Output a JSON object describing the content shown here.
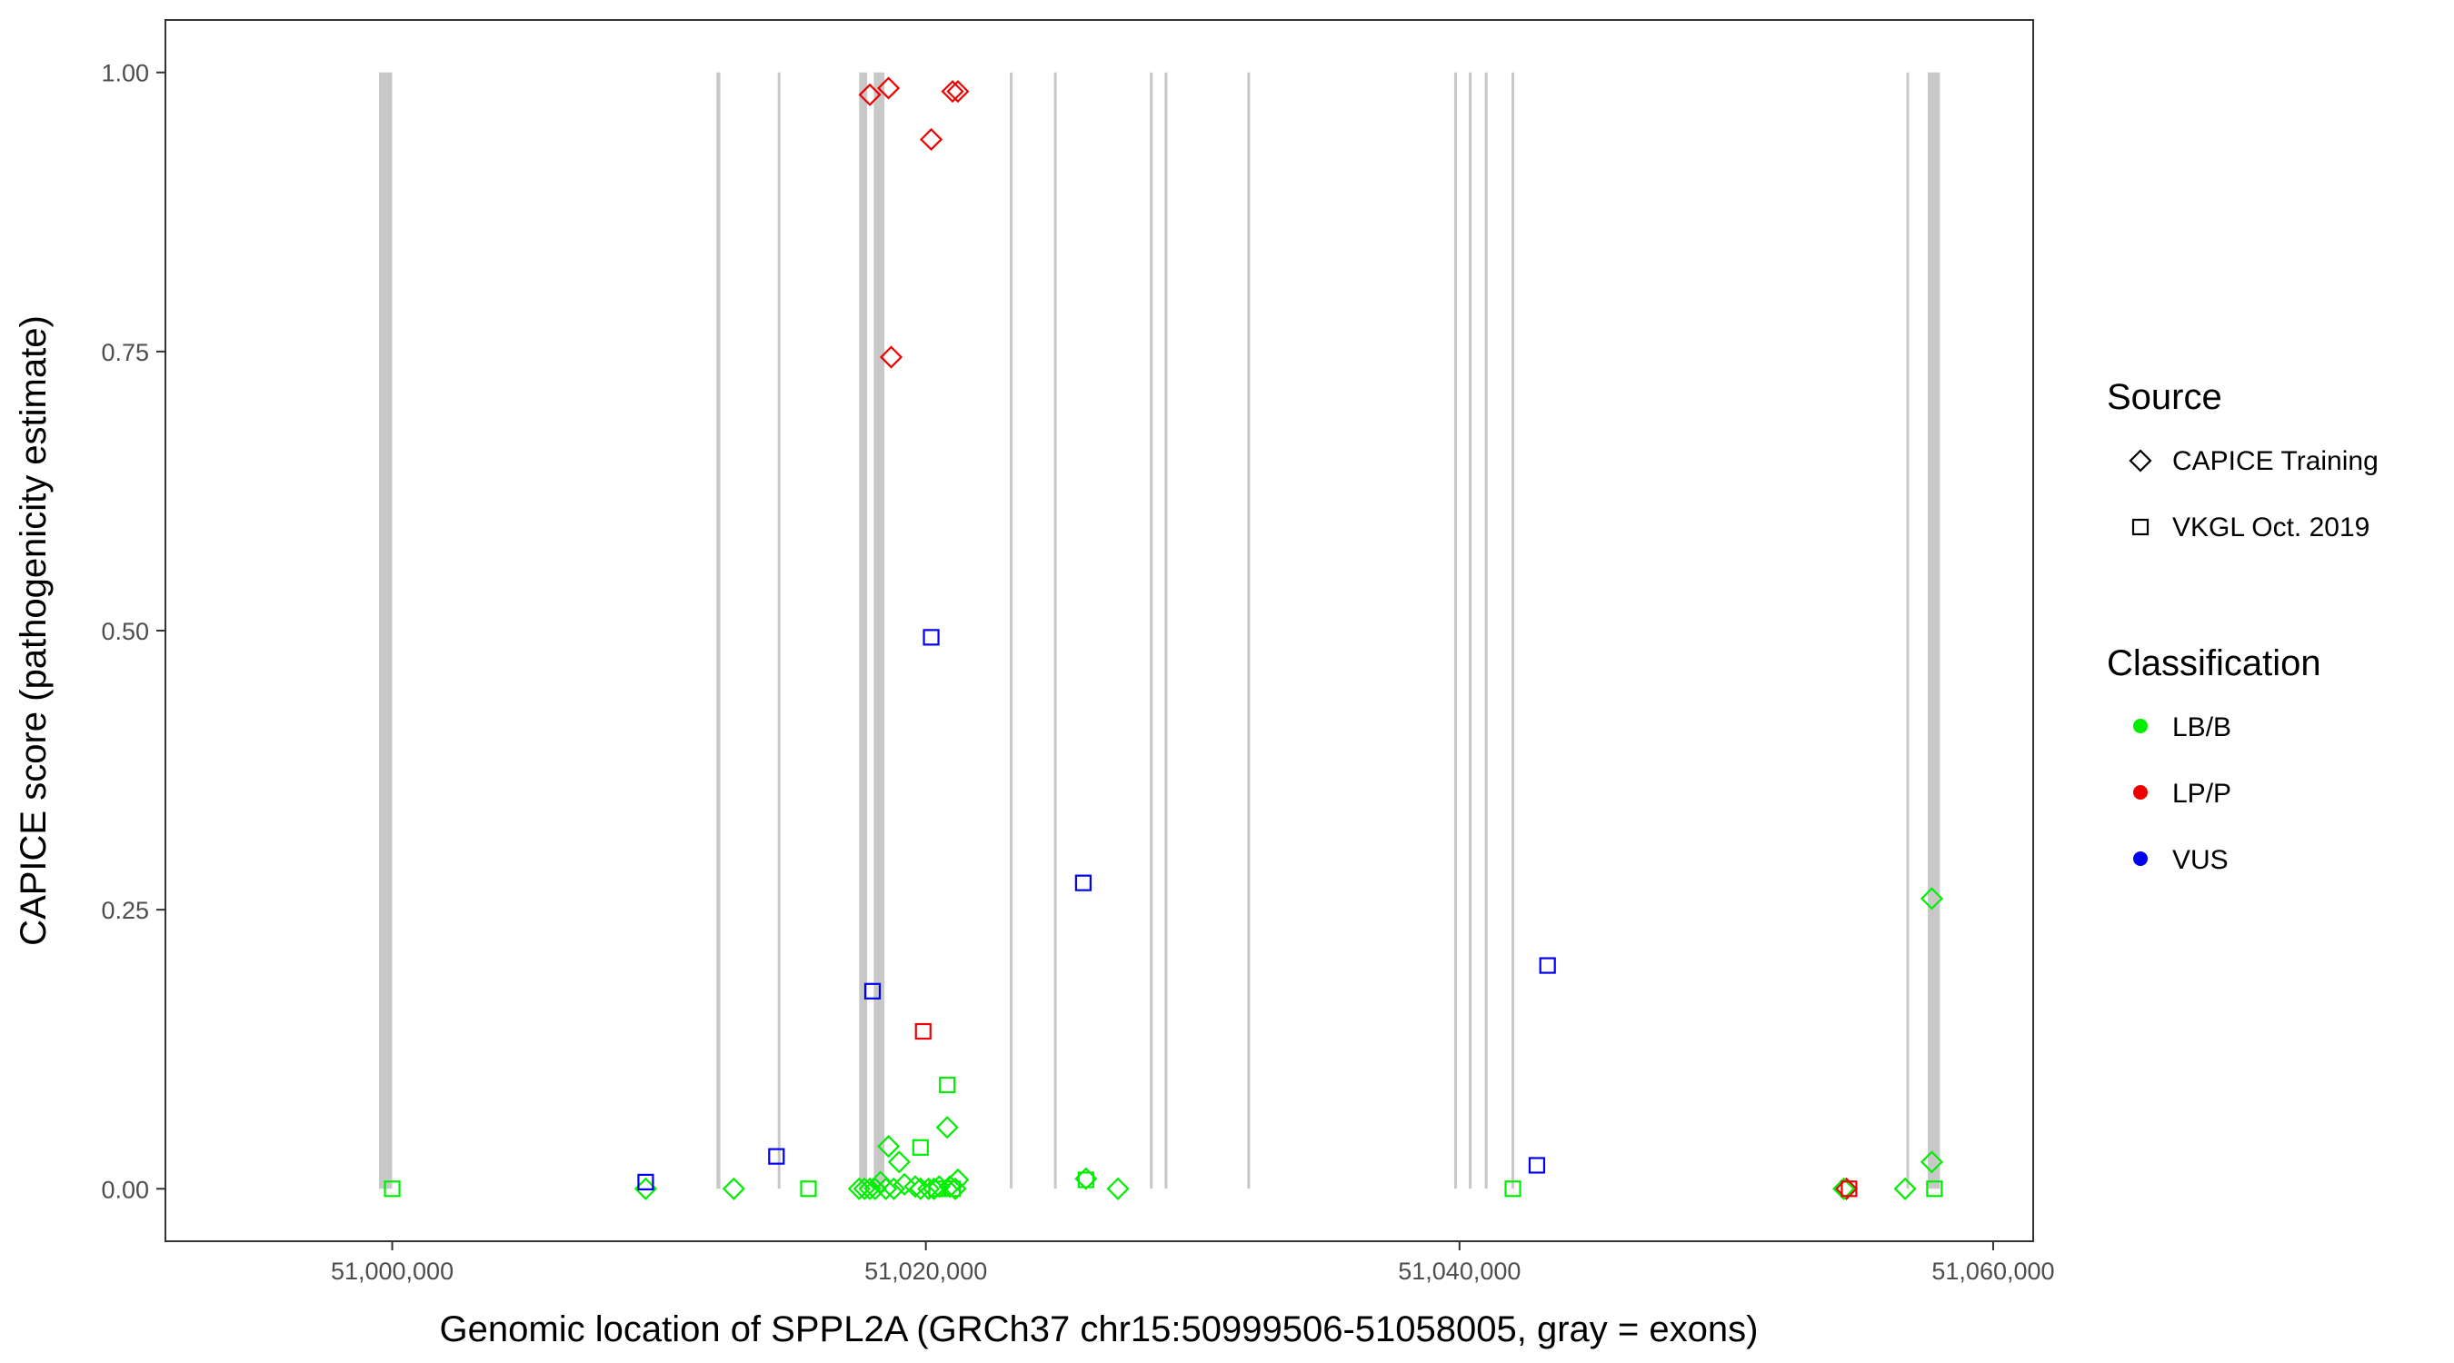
{
  "chart_data": {
    "type": "scatter",
    "title": "",
    "xlabel": "Genomic location of SPPL2A (GRCh37 chr15:50999506-51058005, gray = exons)",
    "ylabel": "CAPICE score (pathogenicity estimate)",
    "xlim": [
      50991500,
      51061500
    ],
    "ylim": [
      -0.047,
      1.047
    ],
    "x_ticks": [
      51000000,
      51020000,
      51040000,
      51060000
    ],
    "x_tick_labels": [
      "51,000,000",
      "51,020,000",
      "51,040,000",
      "51,060,000"
    ],
    "y_ticks": [
      0,
      0.25,
      0.5,
      0.75,
      1.0
    ],
    "y_tick_labels": [
      "0.00",
      "0.25",
      "0.50",
      "0.75",
      "1.00"
    ],
    "grid": false,
    "exons": [
      [
        50999506,
        51000000
      ],
      [
        51012150,
        51012300
      ],
      [
        51014450,
        51014550
      ],
      [
        51017500,
        51017800
      ],
      [
        51018050,
        51018450
      ],
      [
        51023150,
        51023250
      ],
      [
        51024800,
        51024900
      ],
      [
        51028400,
        51028500
      ],
      [
        51028950,
        51029050
      ],
      [
        51032050,
        51032150
      ],
      [
        51039800,
        51039900
      ],
      [
        51040350,
        51040450
      ],
      [
        51040950,
        51041050
      ],
      [
        51041950,
        51042050
      ],
      [
        51056750,
        51056850
      ],
      [
        51057550,
        51058005
      ]
    ],
    "legend": {
      "placement": "right",
      "source_title": "Source",
      "source_items": [
        {
          "label": "CAPICE Training",
          "shape": "diamond"
        },
        {
          "label": "VKGL Oct. 2019",
          "shape": "square"
        }
      ],
      "class_title": "Classification",
      "class_items": [
        {
          "label": "LB/B",
          "color": "#00ee00"
        },
        {
          "label": "LP/P",
          "color": "#ee0000"
        },
        {
          "label": "VUS",
          "color": "#0000ee"
        }
      ]
    },
    "colors": {
      "LB/B": "#00ee00",
      "LP/P": "#ee0000",
      "VUS": "#0000ee"
    },
    "series": [
      {
        "source": "CAPICE Training",
        "classification": "LP/P",
        "points": [
          {
            "x": 51017900,
            "y": 0.98
          },
          {
            "x": 51018600,
            "y": 0.986
          },
          {
            "x": 51021000,
            "y": 0.983
          },
          {
            "x": 51021200,
            "y": 0.983
          },
          {
            "x": 51020200,
            "y": 0.94
          },
          {
            "x": 51018700,
            "y": 0.745
          },
          {
            "x": 51054500,
            "y": 0.0
          }
        ]
      },
      {
        "source": "CAPICE Training",
        "classification": "LB/B",
        "points": [
          {
            "x": 51057700,
            "y": 0.26
          },
          {
            "x": 51020800,
            "y": 0.055
          },
          {
            "x": 51018600,
            "y": 0.038
          },
          {
            "x": 51019000,
            "y": 0.024
          },
          {
            "x": 51057700,
            "y": 0.024
          },
          {
            "x": 51026000,
            "y": 0.009
          },
          {
            "x": 51021200,
            "y": 0.008
          },
          {
            "x": 51018300,
            "y": 0.006
          },
          {
            "x": 51019200,
            "y": 0.004
          },
          {
            "x": 51009500,
            "y": 0.0
          },
          {
            "x": 51012800,
            "y": 0.0
          },
          {
            "x": 51017500,
            "y": 0.0
          },
          {
            "x": 51017700,
            "y": 0.0
          },
          {
            "x": 51017900,
            "y": 0.0
          },
          {
            "x": 51018100,
            "y": 0.0
          },
          {
            "x": 51018500,
            "y": 0.0
          },
          {
            "x": 51018800,
            "y": 0.0
          },
          {
            "x": 51019600,
            "y": 0.002
          },
          {
            "x": 51019800,
            "y": 0.0
          },
          {
            "x": 51020100,
            "y": 0.0
          },
          {
            "x": 51020300,
            "y": 0.0
          },
          {
            "x": 51020500,
            "y": 0.002
          },
          {
            "x": 51020900,
            "y": 0.002
          },
          {
            "x": 51021100,
            "y": 0.0
          },
          {
            "x": 51027200,
            "y": 0.0
          },
          {
            "x": 51054400,
            "y": 0.0
          },
          {
            "x": 51056700,
            "y": 0.0
          }
        ]
      },
      {
        "source": "VKGL Oct. 2019",
        "classification": "VUS",
        "points": [
          {
            "x": 51020200,
            "y": 0.494
          },
          {
            "x": 51025900,
            "y": 0.274
          },
          {
            "x": 51043300,
            "y": 0.2
          },
          {
            "x": 51018000,
            "y": 0.177
          },
          {
            "x": 51014400,
            "y": 0.029
          },
          {
            "x": 51042900,
            "y": 0.021
          },
          {
            "x": 51009500,
            "y": 0.006
          }
        ]
      },
      {
        "source": "VKGL Oct. 2019",
        "classification": "LP/P",
        "points": [
          {
            "x": 51019900,
            "y": 0.141
          },
          {
            "x": 51054600,
            "y": 0.0
          }
        ]
      },
      {
        "source": "VKGL Oct. 2019",
        "classification": "LB/B",
        "points": [
          {
            "x": 51020800,
            "y": 0.093
          },
          {
            "x": 51019800,
            "y": 0.037
          },
          {
            "x": 51026000,
            "y": 0.008
          },
          {
            "x": 51000000,
            "y": 0.0
          },
          {
            "x": 51015600,
            "y": 0.0
          },
          {
            "x": 51020400,
            "y": 0.0
          },
          {
            "x": 51021000,
            "y": 0.0
          },
          {
            "x": 51042000,
            "y": 0.0
          },
          {
            "x": 51057800,
            "y": 0.0
          }
        ]
      }
    ]
  }
}
